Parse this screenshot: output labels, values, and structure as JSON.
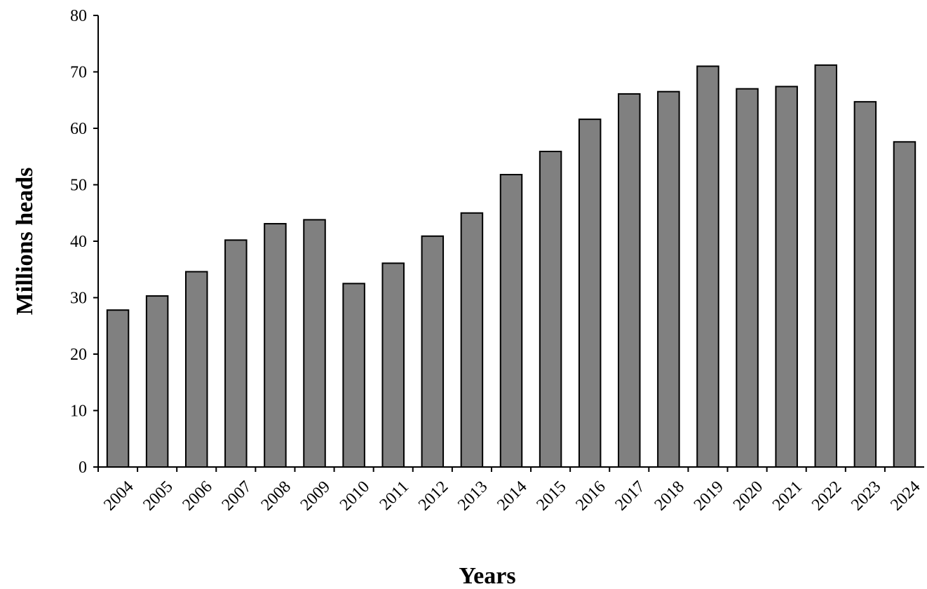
{
  "chart_data": {
    "type": "bar",
    "title": "",
    "xlabel": "Years",
    "ylabel": "Millions heads",
    "ylim": [
      0,
      80
    ],
    "yticks": [
      0,
      10,
      20,
      30,
      40,
      50,
      60,
      70,
      80
    ],
    "grid": false,
    "legend": "none",
    "colors": {
      "bar_fill": "#808080",
      "bar_stroke": "#000000",
      "axis": "#000000"
    },
    "categories": [
      "2004",
      "2005",
      "2006",
      "2007",
      "2008",
      "2009",
      "2010",
      "2011",
      "2012",
      "2013",
      "2014",
      "2015",
      "2016",
      "2017",
      "2018",
      "2019",
      "2020",
      "2021",
      "2022",
      "2023",
      "2024"
    ],
    "values": [
      27.8,
      30.3,
      34.6,
      40.2,
      43.1,
      43.8,
      32.5,
      36.1,
      40.9,
      45.0,
      51.8,
      55.9,
      61.6,
      66.1,
      66.5,
      71.0,
      67.0,
      67.4,
      71.2,
      64.7,
      57.6
    ]
  }
}
